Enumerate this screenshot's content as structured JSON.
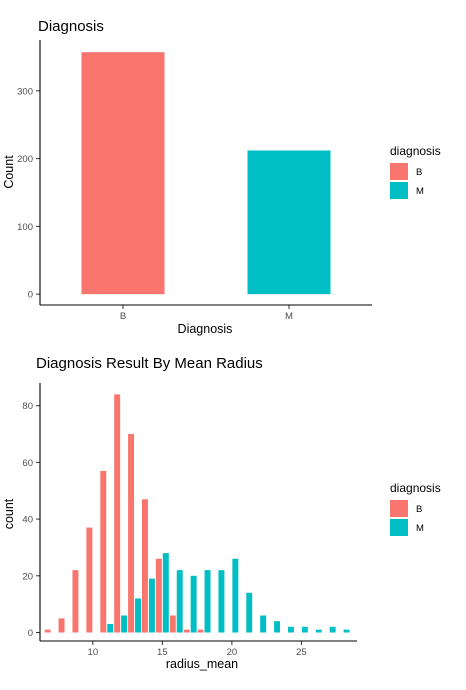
{
  "colors": {
    "B": "#F8766D",
    "M": "#00BFC4"
  },
  "chart_data": [
    {
      "type": "bar",
      "title": "Diagnosis",
      "xlabel": "Diagnosis",
      "ylabel": "Count",
      "categories": [
        "B",
        "M"
      ],
      "values": [
        357,
        212
      ],
      "ylim": [
        -16,
        375
      ],
      "yticks": [
        0,
        100,
        200,
        300
      ],
      "grid": false,
      "legend": {
        "title": "diagnosis",
        "entries": [
          "B",
          "M"
        ],
        "placement": "right"
      }
    },
    {
      "type": "bar",
      "title": "Diagnosis Result By Mean Radius",
      "xlabel": "radius_mean",
      "ylabel": "count",
      "binwidth": 1,
      "xlim": [
        6.2,
        29.0
      ],
      "ylim": [
        -3,
        88
      ],
      "xticks": [
        10,
        15,
        20,
        25
      ],
      "yticks": [
        0,
        20,
        40,
        60,
        80
      ],
      "grid": false,
      "bin_centers": [
        7,
        8,
        9,
        10,
        11,
        12,
        13,
        14,
        15,
        16,
        17,
        18,
        19,
        20,
        21,
        22,
        23,
        24,
        25,
        26,
        27,
        28
      ],
      "series": [
        {
          "name": "B",
          "values": [
            1,
            5,
            22,
            37,
            57,
            84,
            70,
            47,
            26,
            6,
            1,
            1,
            0,
            0,
            0,
            0,
            0,
            0,
            0,
            0,
            0,
            0
          ]
        },
        {
          "name": "M",
          "values": [
            0,
            0,
            0,
            0,
            3,
            6,
            12,
            19,
            28,
            22,
            20,
            22,
            22,
            26,
            14,
            6,
            4,
            2,
            2,
            1,
            2,
            1
          ]
        }
      ],
      "legend": {
        "title": "diagnosis",
        "entries": [
          "B",
          "M"
        ],
        "placement": "right"
      }
    }
  ]
}
